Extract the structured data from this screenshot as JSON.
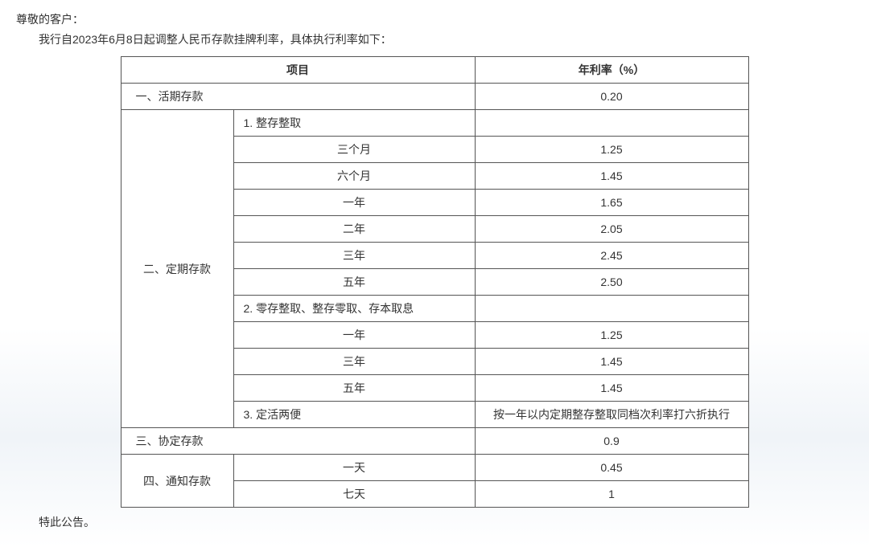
{
  "intro": {
    "line1": "尊敬的客户：",
    "line2": "我行自2023年6月8日起调整人民币存款挂牌利率，具体执行利率如下："
  },
  "table": {
    "header": {
      "item": "项目",
      "rate": "年利率（%）"
    },
    "section1": {
      "label": "一、活期存款",
      "rate": "0.20"
    },
    "section2": {
      "label": "二、定期存款",
      "sub1_label": "1. 整存整取",
      "rows1": [
        {
          "term": "三个月",
          "rate": "1.25"
        },
        {
          "term": "六个月",
          "rate": "1.45"
        },
        {
          "term": "一年",
          "rate": "1.65"
        },
        {
          "term": "二年",
          "rate": "2.05"
        },
        {
          "term": "三年",
          "rate": "2.45"
        },
        {
          "term": "五年",
          "rate": "2.50"
        }
      ],
      "sub2_label": "2. 零存整取、整存零取、存本取息",
      "rows2": [
        {
          "term": "一年",
          "rate": "1.25"
        },
        {
          "term": "三年",
          "rate": "1.45"
        },
        {
          "term": "五年",
          "rate": "1.45"
        }
      ],
      "sub3_label": "3. 定活两便",
      "sub3_rate": "按一年以内定期整存整取同档次利率打六折执行"
    },
    "section3": {
      "label": "三、协定存款",
      "rate": "0.9"
    },
    "section4": {
      "label": "四、通知存款",
      "rows": [
        {
          "term": "一天",
          "rate": "0.45"
        },
        {
          "term": "七天",
          "rate": "1"
        }
      ]
    }
  },
  "footer": "特此公告。"
}
